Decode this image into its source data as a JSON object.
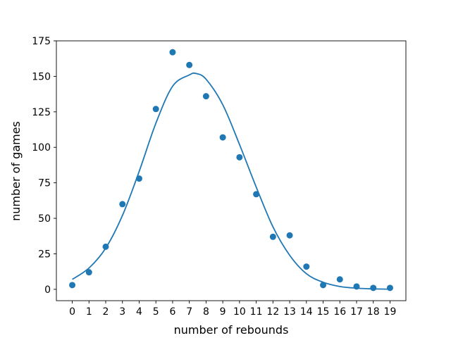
{
  "chart_data": {
    "type": "scatter",
    "title": "",
    "xlabel": "number of rebounds",
    "ylabel": "number of games",
    "xlim": [
      -0.95,
      19.95
    ],
    "ylim": [
      -8,
      175
    ],
    "xticks": [
      0,
      1,
      2,
      3,
      4,
      5,
      6,
      7,
      8,
      9,
      10,
      11,
      12,
      13,
      14,
      15,
      16,
      17,
      18,
      19
    ],
    "yticks": [
      0,
      25,
      50,
      75,
      100,
      125,
      150,
      175
    ],
    "grid": false,
    "legend": "none",
    "series": [
      {
        "kind": "scatter",
        "color": "#1f77b4",
        "x": [
          0,
          1,
          2,
          3,
          4,
          5,
          6,
          7,
          8,
          9,
          10,
          11,
          12,
          13,
          14,
          15,
          16,
          17,
          18,
          19
        ],
        "y": [
          3,
          12,
          30,
          60,
          78,
          127,
          167,
          158,
          136,
          107,
          93,
          67,
          37,
          38,
          16,
          3,
          7,
          2,
          1,
          1
        ]
      },
      {
        "kind": "line",
        "color": "#1f77b4",
        "x": [
          0,
          1,
          2,
          3,
          4,
          5,
          6,
          7,
          7.4,
          8,
          9,
          10,
          11,
          12,
          13,
          14,
          15,
          16,
          17,
          18,
          19
        ],
        "y": [
          7,
          15,
          29,
          52,
          83,
          117,
          143,
          151,
          152,
          148,
          130,
          102,
          72,
          44,
          24,
          11,
          5,
          2,
          0.8,
          0.3,
          0.1
        ]
      }
    ]
  }
}
